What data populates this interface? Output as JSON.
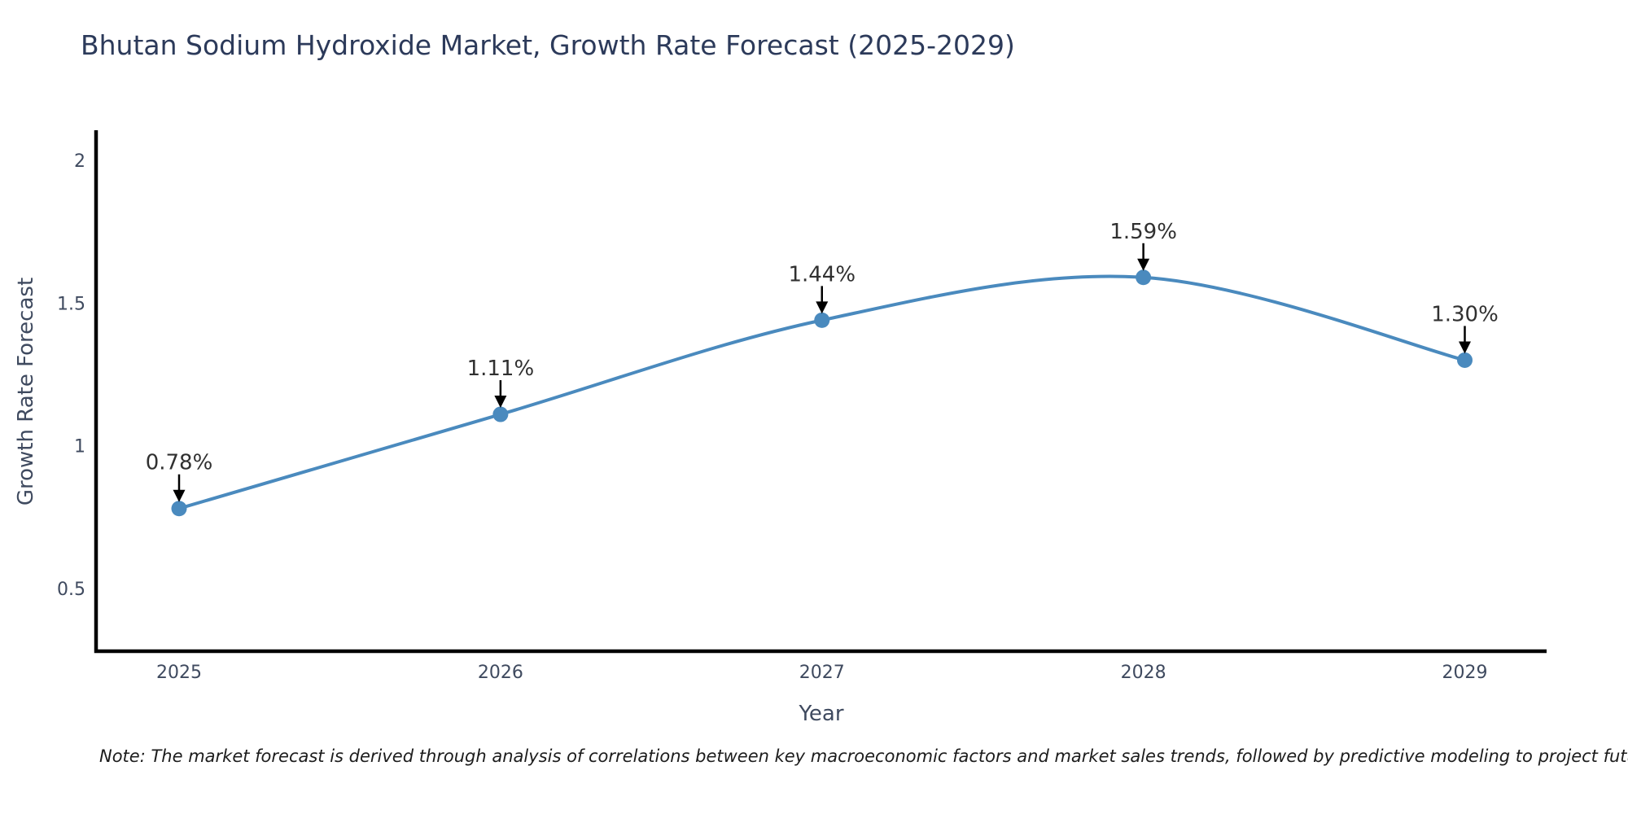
{
  "page": {
    "title": "Bhutan Sodium Hydroxide Market, Growth Rate Forecast (2025-2029)",
    "note": "Note: The market forecast is derived through analysis of correlations between key macroeconomic factors and market sales trends, followed by predictive modeling to project future sales"
  },
  "chart_data": {
    "type": "line",
    "title": "Bhutan Sodium Hydroxide Market, Growth Rate Forecast (2025-2029)",
    "x": [
      "2025",
      "2026",
      "2027",
      "2028",
      "2029"
    ],
    "series": [
      {
        "name": "Growth Rate Forecast",
        "values": [
          0.78,
          1.11,
          1.44,
          1.59,
          1.3
        ]
      }
    ],
    "point_labels": [
      "0.78%",
      "1.11%",
      "1.44%",
      "1.59%",
      "1.30%"
    ],
    "xlabel": "Year",
    "ylabel": "Growth Rate Forecast",
    "yticks": [
      0.5,
      1,
      1.5,
      2
    ],
    "ylim": [
      0.28,
      2.1
    ],
    "line_shape": "spline",
    "grid": false,
    "legend": false,
    "colors": {
      "line": "#4a8abe",
      "marker": "#4a8abe",
      "axis": "#000000",
      "tick_label": "#3f4a5f",
      "annotation_text": "#303030",
      "annotation_arrow": "#000000",
      "title": "#2c3a5a",
      "background": "#ffffff"
    }
  }
}
